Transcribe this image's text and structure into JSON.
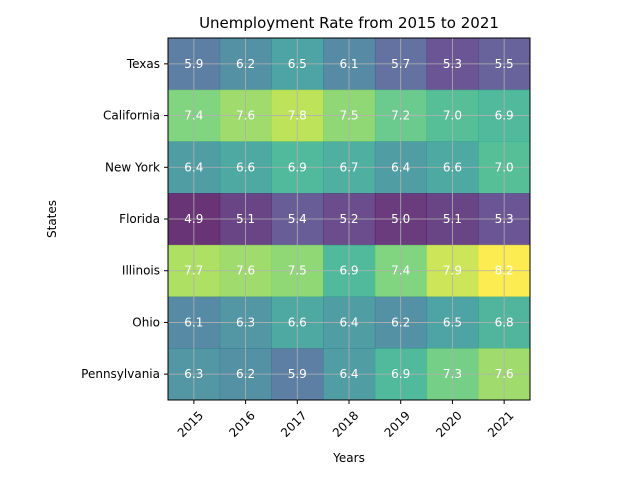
{
  "chart_data": {
    "type": "heatmap",
    "title": "Unemployment Rate from 2015 to 2021",
    "xlabel": "Years",
    "ylabel": "States",
    "x": [
      "2015",
      "2016",
      "2017",
      "2018",
      "2019",
      "2020",
      "2021"
    ],
    "y": [
      "Texas",
      "California",
      "New York",
      "Florida",
      "Illinois",
      "Ohio",
      "Pennsylvania"
    ],
    "values": [
      [
        5.9,
        6.2,
        6.5,
        6.1,
        5.7,
        5.3,
        5.5
      ],
      [
        7.4,
        7.6,
        7.8,
        7.5,
        7.2,
        7.0,
        6.9
      ],
      [
        6.4,
        6.6,
        6.9,
        6.7,
        6.4,
        6.6,
        7.0
      ],
      [
        4.9,
        5.1,
        5.4,
        5.2,
        5.0,
        5.1,
        5.3
      ],
      [
        7.7,
        7.6,
        7.5,
        6.9,
        7.4,
        7.9,
        8.2
      ],
      [
        6.1,
        6.3,
        6.6,
        6.4,
        6.2,
        6.5,
        6.8
      ],
      [
        6.3,
        6.2,
        5.9,
        6.4,
        6.9,
        7.3,
        7.6
      ]
    ],
    "value_range": [
      4.9,
      8.2
    ],
    "colormap": "viridis",
    "annotation_color": "#ffffff",
    "grid": true,
    "legend": "none"
  }
}
